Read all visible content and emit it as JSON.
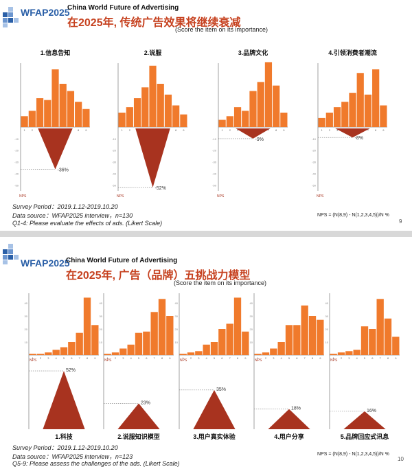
{
  "slide1": {
    "brand": "WFAP2025",
    "org": "China World Future of Advertising",
    "title": "在2025年, 传统广告效果将继续衰减",
    "subtitle": "(Score the item on its importance)",
    "survey_period": "Survey Period：2019.1.12-2019.10.20",
    "data_source": "Data source：WFAP2025 interview，n=130",
    "question": "Q1-4: Please evaluate the effects of ads. (Likert Scale)",
    "formula": "NPS = (N(8,9) - N(1,2,3,4,5))/N %",
    "page": "9",
    "colors": {
      "bar": "#f07a2c",
      "nps": "#a8331f",
      "title": "#c6411f"
    }
  },
  "slide2": {
    "brand": "WFAP2025",
    "org": "China World Future of Advertising",
    "title": "在2025年, 广告（品牌）五挑战力模型",
    "subtitle": "(Score the item on its importance)",
    "survey_period": "Survey Period：2019.1.12-2019.10.20",
    "data_source": "Data source：WFAP2025 interview，n=123",
    "question": "Q5-9: Please assess the challenges of the ads. (Likert Scale)",
    "formula": "NPS = (N(8,9) - N(1,2,3,4,5))/N %",
    "page": "10"
  },
  "chart_data": [
    {
      "type": "bar",
      "title": "1.信息告知",
      "categories": [
        "1",
        "2",
        "3",
        "4",
        "5",
        "6",
        "7",
        "8",
        "9"
      ],
      "values": [
        6,
        9,
        16,
        15,
        32,
        24,
        20,
        14,
        10
      ],
      "ylim": [
        0,
        40
      ],
      "nps": -36,
      "nps_label": "-36%",
      "nps_axis_label": "NPS",
      "nps_ticks": [
        "-10",
        "-20",
        "-30",
        "-40",
        "-50"
      ]
    },
    {
      "type": "bar",
      "title": "2.说服",
      "categories": [
        "1",
        "2",
        "3",
        "4",
        "5",
        "6",
        "7",
        "8",
        "9"
      ],
      "values": [
        8,
        11,
        16,
        22,
        34,
        24,
        18,
        12,
        7
      ],
      "ylim": [
        0,
        40
      ],
      "nps": -52,
      "nps_label": "-52%",
      "nps_axis_label": "NPS",
      "nps_ticks": [
        "-10",
        "-20",
        "-30",
        "-40",
        "-50"
      ]
    },
    {
      "type": "bar",
      "title": "3.品牌文化",
      "categories": [
        "1",
        "2",
        "3",
        "4",
        "5",
        "6",
        "7",
        "8",
        "9"
      ],
      "values": [
        4,
        6,
        11,
        9,
        20,
        25,
        36,
        23,
        8
      ],
      "ylim": [
        0,
        40
      ],
      "nps": -9,
      "nps_label": "-9%",
      "nps_axis_label": "NPS",
      "nps_ticks": [
        "-10",
        "-20",
        "-30",
        "-40",
        "-50"
      ]
    },
    {
      "type": "bar",
      "title": "4.引领消费者潮流",
      "categories": [
        "1",
        "2",
        "3",
        "4",
        "5",
        "6",
        "7",
        "8",
        "9"
      ],
      "values": [
        5,
        8,
        11,
        14,
        19,
        30,
        18,
        32,
        12
      ],
      "ylim": [
        0,
        40
      ],
      "nps": -8,
      "nps_label": "-8%",
      "nps_axis_label": "NPS",
      "nps_ticks": [
        "-10",
        "-20",
        "-30",
        "-40",
        "-50"
      ]
    },
    {
      "type": "bar",
      "title": "1.科技",
      "categories": [
        "1",
        "2",
        "3",
        "4",
        "5",
        "6",
        "7",
        "8",
        "9"
      ],
      "values": [
        1,
        1,
        2,
        4,
        6,
        10,
        17,
        44,
        23
      ],
      "ylim": [
        0,
        50
      ],
      "nps": 52,
      "nps_label": "52%",
      "nps_axis_label": "NPS",
      "y_ticks": [
        "10",
        "20",
        "30",
        "40"
      ]
    },
    {
      "type": "bar",
      "title": "2.说服知识模型",
      "categories": [
        "1",
        "2",
        "3",
        "4",
        "5",
        "6",
        "7",
        "8",
        "9"
      ],
      "values": [
        1,
        2,
        5,
        8,
        17,
        18,
        33,
        43,
        30
      ],
      "ylim": [
        0,
        50
      ],
      "nps": 23,
      "nps_label": "23%",
      "nps_axis_label": "NPS",
      "y_ticks": [
        "10",
        "20",
        "30",
        "40"
      ]
    },
    {
      "type": "bar",
      "title": "3.用户真实体验",
      "categories": [
        "1",
        "2",
        "3",
        "4",
        "5",
        "6",
        "7",
        "8",
        "9"
      ],
      "values": [
        1,
        2,
        3,
        8,
        10,
        20,
        24,
        44,
        18
      ],
      "ylim": [
        0,
        50
      ],
      "nps": 35,
      "nps_label": "35%",
      "nps_axis_label": "NPS",
      "y_ticks": [
        "10",
        "20",
        "30",
        "40"
      ]
    },
    {
      "type": "bar",
      "title": "4.用户分享",
      "categories": [
        "1",
        "2",
        "3",
        "4",
        "5",
        "6",
        "7",
        "8",
        "9"
      ],
      "values": [
        1,
        2,
        5,
        10,
        23,
        23,
        38,
        30,
        27
      ],
      "ylim": [
        0,
        50
      ],
      "nps": 18,
      "nps_label": "18%",
      "nps_axis_label": "NPS",
      "y_ticks": [
        "10",
        "20",
        "30",
        "40"
      ]
    },
    {
      "type": "bar",
      "title": "5.品牌回应式讯息",
      "categories": [
        "1",
        "2",
        "3",
        "4",
        "5",
        "6",
        "7",
        "8",
        "9"
      ],
      "values": [
        1,
        2,
        3,
        4,
        22,
        20,
        43,
        28,
        14
      ],
      "ylim": [
        0,
        50
      ],
      "nps": 16,
      "nps_label": "16%",
      "nps_axis_label": "NPS",
      "y_ticks": [
        "10",
        "20",
        "30",
        "40"
      ]
    }
  ]
}
